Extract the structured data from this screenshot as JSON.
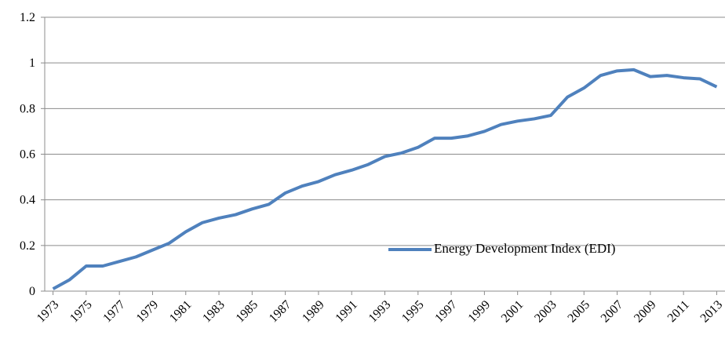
{
  "chart_data": {
    "type": "line",
    "x": [
      1973,
      1974,
      1975,
      1976,
      1977,
      1978,
      1979,
      1980,
      1981,
      1982,
      1983,
      1984,
      1985,
      1986,
      1987,
      1988,
      1989,
      1990,
      1991,
      1992,
      1993,
      1994,
      1995,
      1996,
      1997,
      1998,
      1999,
      2000,
      2001,
      2002,
      2003,
      2004,
      2005,
      2006,
      2007,
      2008,
      2009,
      2010,
      2011,
      2012,
      2013
    ],
    "series": [
      {
        "name": "Energy Development Index (EDI)",
        "color": "#4f81bd",
        "values": [
          0.01,
          0.05,
          0.11,
          0.11,
          0.13,
          0.15,
          0.18,
          0.21,
          0.26,
          0.3,
          0.32,
          0.335,
          0.36,
          0.38,
          0.43,
          0.46,
          0.48,
          0.51,
          0.53,
          0.555,
          0.59,
          0.605,
          0.63,
          0.67,
          0.67,
          0.68,
          0.7,
          0.73,
          0.745,
          0.755,
          0.77,
          0.85,
          0.89,
          0.945,
          0.965,
          0.97,
          0.94,
          0.945,
          0.935,
          0.93,
          0.895
        ]
      }
    ],
    "xlim": [
      1972.5,
      2013.5
    ],
    "xticks": [
      1973,
      1975,
      1977,
      1979,
      1981,
      1983,
      1985,
      1987,
      1989,
      1991,
      1993,
      1995,
      1997,
      1999,
      2001,
      2003,
      2005,
      2007,
      2009,
      2011,
      2013
    ],
    "ylim": [
      0,
      1.2
    ],
    "yticks": [
      0,
      0.2,
      0.4,
      0.6,
      0.8,
      1,
      1.2
    ],
    "grid": true
  }
}
